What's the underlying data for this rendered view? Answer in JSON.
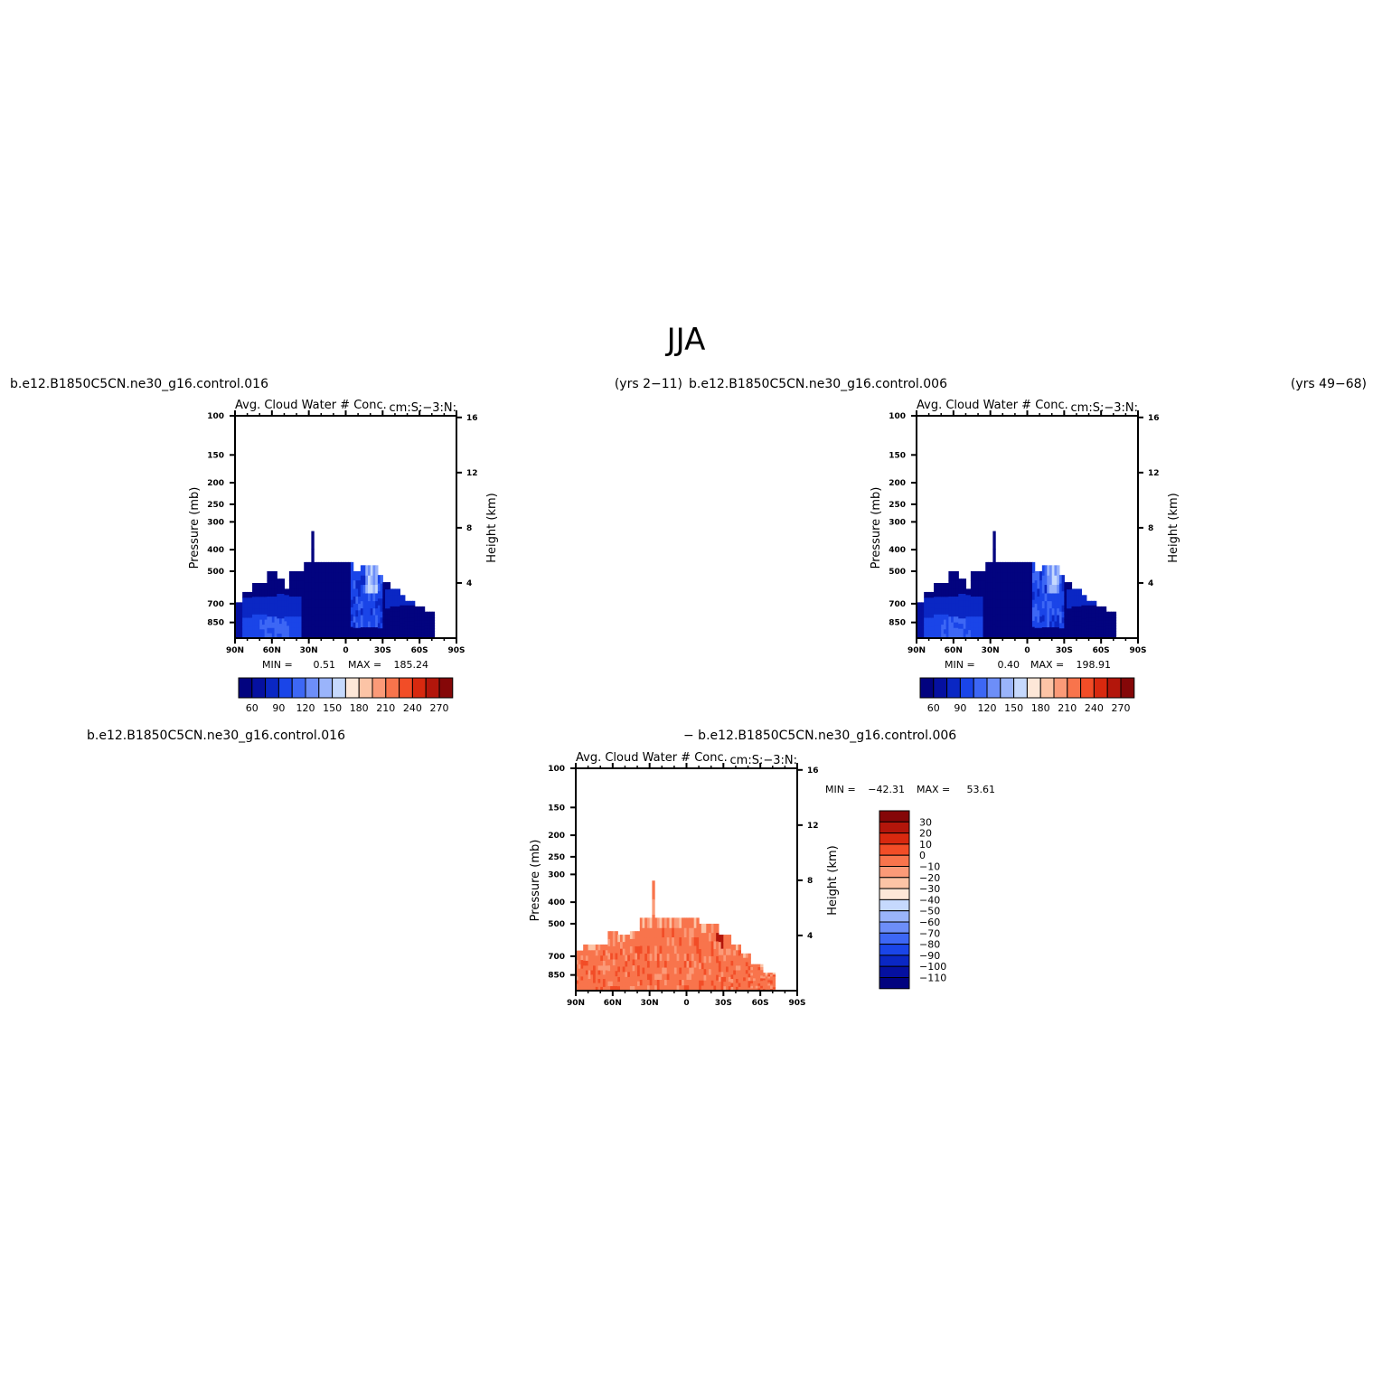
{
  "figure": {
    "title": "JJA"
  },
  "colors": {
    "control_palette": [
      "#02037f",
      "#0510a0",
      "#0a27c4",
      "#1a45e8",
      "#3d67f5",
      "#6d8ef8",
      "#9ab4fb",
      "#c6d9fd",
      "#fde7d8",
      "#fcc4a6",
      "#fb9a78",
      "#f8744c",
      "#f24d27",
      "#d8290f",
      "#b3160b",
      "#850708"
    ],
    "diff_palette": [
      "#02037f",
      "#0510a0",
      "#0a27c4",
      "#1a45e8",
      "#3d67f5",
      "#6d8ef8",
      "#9ab4fb",
      "#c6d9fd",
      "#fde7d8",
      "#fcc4a6",
      "#fb9a78",
      "#f8744c",
      "#f24d27",
      "#d8290f",
      "#b3160b",
      "#850708"
    ]
  },
  "chart_data": [
    {
      "type": "heatmap",
      "case_label": "b.e12.B1850C5CN.ne30_g16.control.016",
      "years_label": "(yrs 2−11)",
      "variable_label": "Avg. Cloud Water # Conc.",
      "units_label": "cm:S:−3:N:",
      "ylabel": "Pressure (mb)",
      "y2label": "Height (km)",
      "x_ticks": [
        "90N",
        "60N",
        "30N",
        "0",
        "30S",
        "60S",
        "90S"
      ],
      "y_ticks": [
        "100",
        "150",
        "200",
        "250",
        "300",
        "400",
        "500",
        "700",
        "850"
      ],
      "y2_ticks": [
        "16",
        "12",
        "8",
        "4"
      ],
      "min_label": "MIN =",
      "min_value": "0.51",
      "max_label": "MAX =",
      "max_value": "185.24",
      "colorbar_labels": [
        "60",
        "90",
        "120",
        "150",
        "180",
        "210",
        "240",
        "270"
      ],
      "xlim": [
        90,
        -90
      ],
      "ylim": [
        1000,
        100
      ]
    },
    {
      "type": "heatmap",
      "case_label": "b.e12.B1850C5CN.ne30_g16.control.006",
      "years_label": "(yrs 49−68)",
      "variable_label": "Avg. Cloud Water # Conc.",
      "units_label": "cm:S:−3:N:",
      "ylabel": "Pressure (mb)",
      "y2label": "Height (km)",
      "x_ticks": [
        "90N",
        "60N",
        "30N",
        "0",
        "30S",
        "60S",
        "90S"
      ],
      "y_ticks": [
        "100",
        "150",
        "200",
        "250",
        "300",
        "400",
        "500",
        "700",
        "850"
      ],
      "y2_ticks": [
        "16",
        "12",
        "8",
        "4"
      ],
      "min_label": "MIN =",
      "min_value": "0.40",
      "max_label": "MAX =",
      "max_value": "198.91",
      "colorbar_labels": [
        "60",
        "90",
        "120",
        "150",
        "180",
        "210",
        "240",
        "270"
      ],
      "xlim": [
        90,
        -90
      ],
      "ylim": [
        1000,
        100
      ]
    },
    {
      "type": "heatmap",
      "case_label": "b.e12.B1850C5CN.ne30_g16.control.016",
      "case_label_2": "− b.e12.B1850C5CN.ne30_g16.control.006",
      "variable_label": "Avg. Cloud Water # Conc.",
      "units_label": "cm:S:−3:N:",
      "ylabel": "Pressure (mb)",
      "y2label": "Height (km)",
      "x_ticks": [
        "90N",
        "60N",
        "30N",
        "0",
        "30S",
        "60S",
        "90S"
      ],
      "y_ticks": [
        "100",
        "150",
        "200",
        "250",
        "300",
        "400",
        "500",
        "700",
        "850"
      ],
      "y2_ticks": [
        "16",
        "12",
        "8",
        "4"
      ],
      "min_label": "MIN =",
      "min_value": "−42.31",
      "max_label": "MAX =",
      "max_value": "53.61",
      "colorbar_labels": [
        "30",
        "20",
        "10",
        "0",
        "−10",
        "−20",
        "−30",
        "−40",
        "−50",
        "−60",
        "−70",
        "−80",
        "−90",
        "−100",
        "−110"
      ],
      "xlim": [
        90,
        -90
      ],
      "ylim": [
        1000,
        100
      ]
    }
  ]
}
